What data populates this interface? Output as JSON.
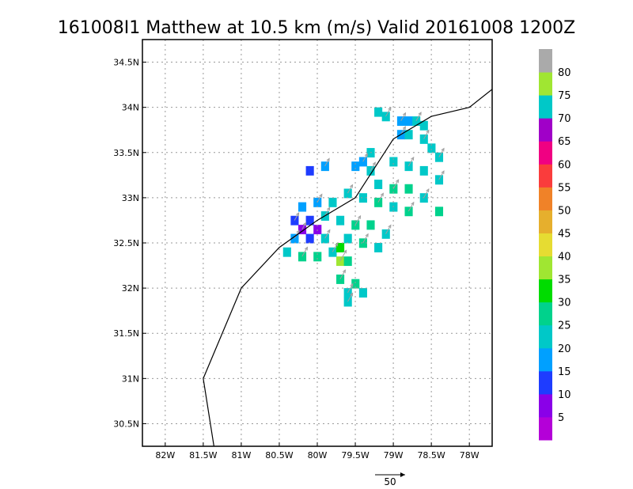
{
  "chart_data": {
    "type": "heatmap",
    "title": "161008I1 Matthew at 10.5 km (m/s) Valid 20161008 1200Z",
    "xlim": [
      -82.3,
      -77.7
    ],
    "ylim": [
      30.25,
      34.75
    ],
    "x_ticks": [
      {
        "value": -82.0,
        "label": "82W"
      },
      {
        "value": -81.5,
        "label": "81.5W"
      },
      {
        "value": -81.0,
        "label": "81W"
      },
      {
        "value": -80.5,
        "label": "80.5W"
      },
      {
        "value": -80.0,
        "label": "80W"
      },
      {
        "value": -79.5,
        "label": "79.5W"
      },
      {
        "value": -79.0,
        "label": "79W"
      },
      {
        "value": -78.5,
        "label": "78.5W"
      },
      {
        "value": -78.0,
        "label": "78W"
      }
    ],
    "y_ticks": [
      {
        "value": 30.5,
        "label": "30.5N"
      },
      {
        "value": 31.0,
        "label": "31N"
      },
      {
        "value": 31.5,
        "label": "31.5N"
      },
      {
        "value": 32.0,
        "label": "32N"
      },
      {
        "value": 32.5,
        "label": "32.5N"
      },
      {
        "value": 33.0,
        "label": "33N"
      },
      {
        "value": 33.5,
        "label": "33.5N"
      },
      {
        "value": 34.0,
        "label": "34N"
      },
      {
        "value": 34.5,
        "label": "34.5N"
      }
    ],
    "grid": true,
    "colorbar": {
      "labels": [
        "5",
        "10",
        "15",
        "20",
        "25",
        "30",
        "35",
        "40",
        "45",
        "50",
        "55",
        "60",
        "65",
        "70",
        "75",
        "80"
      ],
      "colors": [
        "#b400d8",
        "#8a00e8",
        "#1e3cff",
        "#00a0ff",
        "#00c8c8",
        "#00d28c",
        "#00dc00",
        "#a0e632",
        "#e6dc32",
        "#e6af2d",
        "#f08228",
        "#fa3c3c",
        "#f00082",
        "#a000c8",
        "#00c8c8",
        "#a0e632",
        "#aaaaaa"
      ]
    },
    "wind_speed_cells": [
      {
        "lon": -78.9,
        "lat": 33.85,
        "v": 18
      },
      {
        "lon": -78.8,
        "lat": 33.85,
        "v": 16
      },
      {
        "lon": -78.7,
        "lat": 33.85,
        "v": 22
      },
      {
        "lon": -79.2,
        "lat": 33.95,
        "v": 22
      },
      {
        "lon": -79.1,
        "lat": 33.9,
        "v": 24
      },
      {
        "lon": -78.6,
        "lat": 33.8,
        "v": 23
      },
      {
        "lon": -78.9,
        "lat": 33.7,
        "v": 17
      },
      {
        "lon": -78.8,
        "lat": 33.7,
        "v": 23
      },
      {
        "lon": -78.6,
        "lat": 33.65,
        "v": 24
      },
      {
        "lon": -78.5,
        "lat": 33.55,
        "v": 23
      },
      {
        "lon": -78.4,
        "lat": 33.45,
        "v": 23
      },
      {
        "lon": -79.3,
        "lat": 33.5,
        "v": 22
      },
      {
        "lon": -79.4,
        "lat": 33.4,
        "v": 17
      },
      {
        "lon": -79.5,
        "lat": 33.35,
        "v": 18
      },
      {
        "lon": -79.3,
        "lat": 33.3,
        "v": 20
      },
      {
        "lon": -79.0,
        "lat": 33.4,
        "v": 23
      },
      {
        "lon": -78.8,
        "lat": 33.35,
        "v": 24
      },
      {
        "lon": -78.6,
        "lat": 33.3,
        "v": 23
      },
      {
        "lon": -78.4,
        "lat": 33.2,
        "v": 23
      },
      {
        "lon": -79.2,
        "lat": 33.15,
        "v": 24
      },
      {
        "lon": -79.0,
        "lat": 33.1,
        "v": 25
      },
      {
        "lon": -78.8,
        "lat": 33.1,
        "v": 26
      },
      {
        "lon": -78.6,
        "lat": 33.0,
        "v": 23
      },
      {
        "lon": -78.4,
        "lat": 32.85,
        "v": 26
      },
      {
        "lon": -79.6,
        "lat": 33.05,
        "v": 21
      },
      {
        "lon": -79.4,
        "lat": 33.0,
        "v": 24
      },
      {
        "lon": -79.2,
        "lat": 32.95,
        "v": 25
      },
      {
        "lon": -79.0,
        "lat": 32.9,
        "v": 24
      },
      {
        "lon": -78.8,
        "lat": 32.85,
        "v": 25
      },
      {
        "lon": -79.8,
        "lat": 32.95,
        "v": 22
      },
      {
        "lon": -80.0,
        "lat": 32.95,
        "v": 18
      },
      {
        "lon": -80.2,
        "lat": 32.9,
        "v": 16
      },
      {
        "lon": -79.9,
        "lat": 32.8,
        "v": 20
      },
      {
        "lon": -79.7,
        "lat": 32.75,
        "v": 22
      },
      {
        "lon": -79.5,
        "lat": 32.7,
        "v": 25
      },
      {
        "lon": -79.3,
        "lat": 32.7,
        "v": 26
      },
      {
        "lon": -79.1,
        "lat": 32.6,
        "v": 24
      },
      {
        "lon": -79.6,
        "lat": 32.55,
        "v": 23
      },
      {
        "lon": -79.4,
        "lat": 32.5,
        "v": 25
      },
      {
        "lon": -79.2,
        "lat": 32.45,
        "v": 23
      },
      {
        "lon": -80.3,
        "lat": 32.75,
        "v": 14
      },
      {
        "lon": -80.1,
        "lat": 32.75,
        "v": 10
      },
      {
        "lon": -80.2,
        "lat": 32.65,
        "v": 8
      },
      {
        "lon": -80.0,
        "lat": 32.65,
        "v": 6
      },
      {
        "lon": -80.3,
        "lat": 32.55,
        "v": 18
      },
      {
        "lon": -80.1,
        "lat": 32.55,
        "v": 12
      },
      {
        "lon": -79.9,
        "lat": 32.55,
        "v": 22
      },
      {
        "lon": -80.4,
        "lat": 32.4,
        "v": 24
      },
      {
        "lon": -80.2,
        "lat": 32.35,
        "v": 27
      },
      {
        "lon": -80.0,
        "lat": 32.35,
        "v": 25
      },
      {
        "lon": -79.8,
        "lat": 32.4,
        "v": 24
      },
      {
        "lon": -79.7,
        "lat": 32.45,
        "v": 34
      },
      {
        "lon": -79.7,
        "lat": 32.3,
        "v": 38
      },
      {
        "lon": -79.6,
        "lat": 32.3,
        "v": 26
      },
      {
        "lon": -79.7,
        "lat": 32.1,
        "v": 26
      },
      {
        "lon": -79.5,
        "lat": 32.05,
        "v": 25
      },
      {
        "lon": -79.6,
        "lat": 31.95,
        "v": 24
      },
      {
        "lon": -79.4,
        "lat": 31.95,
        "v": 23
      },
      {
        "lon": -79.6,
        "lat": 31.85,
        "v": 22
      },
      {
        "lon": -80.1,
        "lat": 33.3,
        "v": 12
      },
      {
        "lon": -79.9,
        "lat": 33.35,
        "v": 15
      }
    ],
    "track": [
      {
        "lon": -81.35,
        "lat": 30.2
      },
      {
        "lon": -81.5,
        "lat": 31.0
      },
      {
        "lon": -81.0,
        "lat": 32.0
      },
      {
        "lon": -80.5,
        "lat": 32.45
      },
      {
        "lon": -80.0,
        "lat": 32.75
      },
      {
        "lon": -79.5,
        "lat": 33.0
      },
      {
        "lon": -79.0,
        "lat": 33.65
      },
      {
        "lon": -78.5,
        "lat": 33.9
      },
      {
        "lon": -78.0,
        "lat": 34.0
      },
      {
        "lon": -77.7,
        "lat": 34.2
      }
    ],
    "reference_vector": {
      "label": "50"
    }
  }
}
